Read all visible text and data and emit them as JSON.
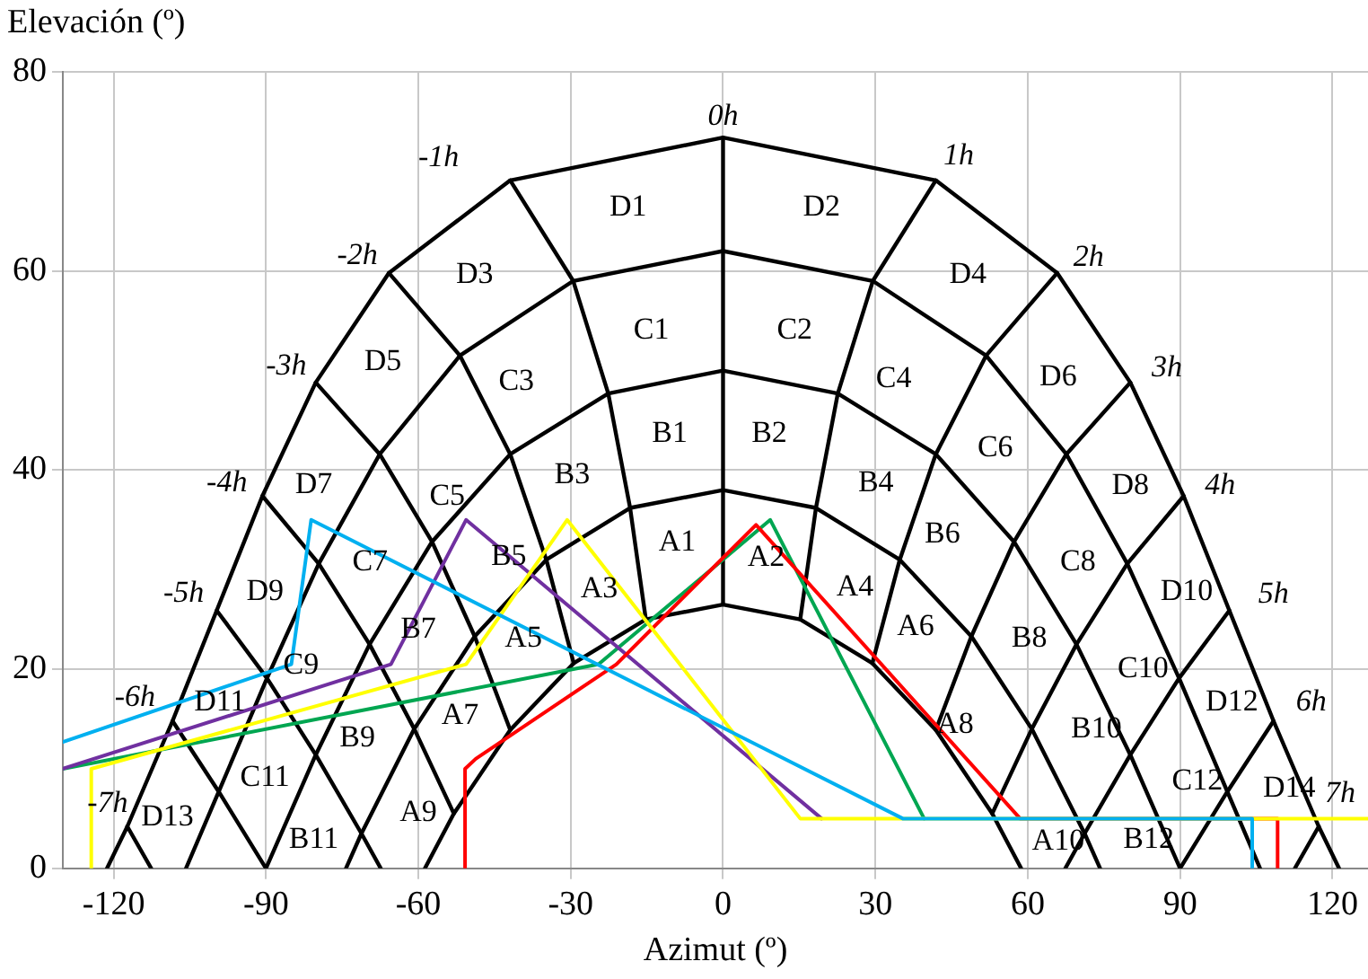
{
  "chart_data": {
    "type": "line",
    "xlabel": "Azimut (º)",
    "ylabel": "Elevación (º)",
    "xlim": [
      -130,
      127
    ],
    "ylim": [
      0,
      80
    ],
    "xticks": [
      -120,
      -90,
      -60,
      -30,
      0,
      30,
      60,
      90,
      120
    ],
    "yticks": [
      0,
      20,
      40,
      60,
      80
    ],
    "grid": true,
    "legend": false,
    "series": [
      {
        "color": "#000000",
        "x": [
          -121.3,
          -117.3,
          -108.4,
          -99.7,
          -90.7,
          -80.2,
          -65.8,
          -41.9,
          0,
          41.9,
          65.8,
          80.2,
          90.7,
          99.7,
          108.4,
          117.3,
          121.3
        ],
        "values": [
          0,
          4.2,
          14.8,
          25.9,
          37.4,
          48.8,
          59.8,
          69.1,
          73.4,
          69.1,
          59.8,
          48.8,
          37.4,
          25.9,
          14.8,
          4.2,
          0
        ]
      },
      {
        "color": "#000000",
        "x": [
          -105.75,
          -99.3,
          -89.8,
          -79.6,
          -67.6,
          -51.8,
          -29.5,
          0,
          29.5,
          51.8,
          67.6,
          79.6,
          89.8,
          99.3,
          105.75
        ],
        "values": [
          0,
          7.7,
          19.1,
          30.6,
          41.6,
          51.5,
          59.0,
          62.0,
          59.0,
          51.5,
          41.6,
          30.6,
          19.1,
          7.7,
          0
        ]
      },
      {
        "color": "#000000",
        "x": [
          -90,
          -80.2,
          -69.6,
          -57.3,
          -41.9,
          -22.6,
          0,
          22.6,
          41.9,
          57.3,
          69.6,
          80.2,
          90
        ],
        "values": [
          0,
          11.4,
          22.5,
          32.8,
          41.6,
          47.7,
          50,
          47.7,
          41.6,
          32.8,
          22.5,
          11.4,
          0
        ]
      },
      {
        "color": "#000000",
        "x": [
          -74.25,
          -71.2,
          -60.8,
          -48.9,
          -34.8,
          -18.3,
          0,
          18.3,
          34.8,
          48.9,
          60.8,
          71.2,
          74.25
        ],
        "values": [
          0,
          3.5,
          14.0,
          23.3,
          31.0,
          36.2,
          38.0,
          36.2,
          31.0,
          23.3,
          14.0,
          3.5,
          0
        ]
      },
      {
        "color": "#000000",
        "x": [
          -58.7,
          -53.0,
          -41.9,
          -29.4,
          -15.2,
          0,
          15.2,
          29.4,
          41.9,
          53.0,
          58.7
        ],
        "values": [
          0,
          5.5,
          13.9,
          20.6,
          25.0,
          26.5,
          25.0,
          20.6,
          13.9,
          5.5,
          0
        ]
      },
      {
        "color": "#000000",
        "x": [
          0,
          0
        ],
        "values": [
          26.5,
          73.4
        ]
      },
      {
        "color": "#000000",
        "x": [
          15.2,
          18.3,
          22.6,
          29.5,
          41.9
        ],
        "values": [
          25.0,
          36.2,
          47.7,
          59.0,
          69.1
        ]
      },
      {
        "color": "#000000",
        "x": [
          -41.9,
          -29.5,
          -22.6,
          -18.3,
          -15.2
        ],
        "values": [
          69.1,
          59.0,
          47.7,
          36.2,
          25.0
        ]
      },
      {
        "color": "#000000",
        "x": [
          29.4,
          34.8,
          41.9,
          51.8,
          65.8
        ],
        "values": [
          20.6,
          31.0,
          41.6,
          51.5,
          59.8
        ]
      },
      {
        "color": "#000000",
        "x": [
          -65.8,
          -51.8,
          -41.9,
          -34.8,
          -29.4
        ],
        "values": [
          59.8,
          51.5,
          41.6,
          31.0,
          20.6
        ]
      },
      {
        "color": "#000000",
        "x": [
          41.9,
          48.9,
          57.3,
          67.6,
          80.2
        ],
        "values": [
          13.9,
          23.3,
          32.8,
          41.6,
          48.8
        ]
      },
      {
        "color": "#000000",
        "x": [
          -80.2,
          -67.6,
          -57.3,
          -48.9,
          -41.9
        ],
        "values": [
          48.8,
          41.6,
          32.8,
          23.3,
          13.9
        ]
      },
      {
        "color": "#000000",
        "x": [
          53.0,
          60.8,
          69.6,
          79.6,
          90.7
        ],
        "values": [
          5.5,
          14.0,
          22.5,
          30.6,
          37.4
        ]
      },
      {
        "color": "#000000",
        "x": [
          -90.7,
          -79.6,
          -69.6,
          -60.8,
          -53.0
        ],
        "values": [
          37.4,
          30.6,
          22.5,
          14.0,
          5.5
        ]
      },
      {
        "color": "#000000",
        "x": [
          67.4,
          71.2,
          80.2,
          89.8,
          99.7
        ],
        "values": [
          0,
          3.5,
          11.4,
          19.1,
          25.9
        ]
      },
      {
        "color": "#000000",
        "x": [
          -99.7,
          -89.8,
          -80.2,
          -71.2,
          -67.4
        ],
        "values": [
          25.9,
          19.1,
          11.4,
          3.5,
          0
        ]
      },
      {
        "color": "#000000",
        "x": [
          90,
          99.3,
          108.4
        ],
        "values": [
          0,
          7.7,
          14.8
        ]
      },
      {
        "color": "#000000",
        "x": [
          -108.4,
          -99.3,
          -90
        ],
        "values": [
          14.8,
          7.7,
          0
        ]
      },
      {
        "color": "#000000",
        "x": [
          112.6,
          117.3
        ],
        "values": [
          0,
          4.2
        ]
      },
      {
        "color": "#000000",
        "x": [
          -117.3,
          -112.6
        ],
        "values": [
          4.2,
          0
        ]
      },
      {
        "color": "#00a651",
        "x": [
          -130,
          -24.5,
          9.3,
          39.6
        ],
        "values": [
          10,
          20.5,
          35,
          5
        ]
      },
      {
        "color": "#7030a0",
        "x": [
          -130,
          -65.4,
          -50.6,
          19.4
        ],
        "values": [
          10,
          20.5,
          35,
          5
        ]
      },
      {
        "color": "#ff0000",
        "x": [
          -50.8,
          -50.8,
          -48.7,
          -21,
          6.5,
          58.5,
          109.2,
          109.2
        ],
        "values": [
          0,
          10,
          11,
          20.5,
          34.5,
          5,
          5,
          0
        ]
      },
      {
        "color": "#ffff00",
        "x": [
          -124.4,
          -124.4,
          -50.6,
          -30.7,
          15.2,
          127
        ],
        "values": [
          0,
          10,
          20.5,
          35,
          5,
          5
        ]
      },
      {
        "color": "#00b0f0",
        "x": [
          -130,
          -85,
          -81.1,
          35.4,
          104.2,
          104.2
        ],
        "values": [
          12.7,
          20.5,
          35,
          5,
          5,
          0
        ]
      }
    ],
    "annotations": [
      "0h",
      "1h",
      "2h",
      "3h",
      "4h",
      "5h",
      "6h",
      "7h",
      "-1h",
      "-2h",
      "-3h",
      "-4h",
      "-5h",
      "-6h",
      "-7h",
      "D1",
      "D2",
      "D3",
      "D4",
      "D5",
      "D6",
      "D7",
      "D8",
      "D9",
      "D10",
      "D11",
      "D12",
      "D13",
      "D14",
      "C1",
      "C2",
      "C3",
      "C4",
      "C5",
      "C6",
      "C7",
      "C8",
      "C9",
      "C10",
      "C11",
      "C12",
      "B1",
      "B2",
      "B3",
      "B4",
      "B5",
      "B6",
      "B7",
      "B8",
      "B9",
      "B10",
      "B11",
      "B12",
      "A1",
      "A2",
      "A3",
      "A4",
      "A5",
      "A6",
      "A7",
      "A8",
      "A9",
      "A10"
    ]
  }
}
